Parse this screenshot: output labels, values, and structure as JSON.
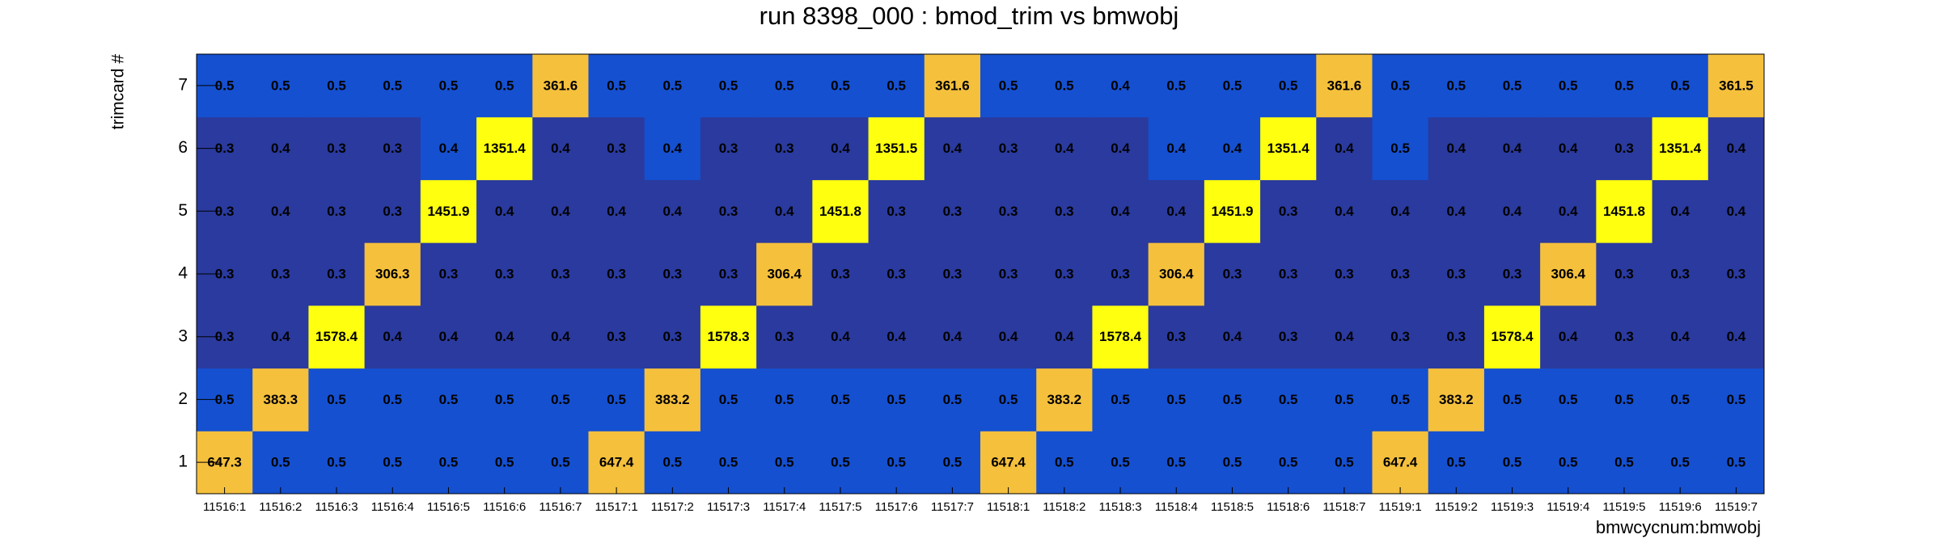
{
  "chart_data": {
    "type": "heatmap",
    "title": "run 8398_000 : bmod_trim vs bmwobj",
    "x_label": "bmwcycnum:bmwobj",
    "y_label": "trimcard #",
    "categories": [
      "11516:1",
      "11516:2",
      "11516:3",
      "11516:4",
      "11516:5",
      "11516:6",
      "11516:7",
      "11517:1",
      "11517:2",
      "11517:3",
      "11517:4",
      "11517:5",
      "11517:6",
      "11517:7",
      "11518:1",
      "11518:2",
      "11518:3",
      "11518:4",
      "11518:5",
      "11518:6",
      "11518:7",
      "11519:1",
      "11519:2",
      "11519:3",
      "11519:4",
      "11519:5",
      "11519:6",
      "11519:7"
    ],
    "y_categories": [
      "1",
      "2",
      "3",
      "4",
      "5",
      "6",
      "7"
    ],
    "values": [
      [
        647.3,
        0.5,
        0.5,
        0.5,
        0.5,
        0.5,
        0.5,
        647.4,
        0.5,
        0.5,
        0.5,
        0.5,
        0.5,
        0.5,
        647.4,
        0.5,
        0.5,
        0.5,
        0.5,
        0.5,
        0.5,
        647.4,
        0.5,
        0.5,
        0.5,
        0.5,
        0.5,
        0.5
      ],
      [
        0.5,
        383.3,
        0.5,
        0.5,
        0.5,
        0.5,
        0.5,
        0.5,
        383.2,
        0.5,
        0.5,
        0.5,
        0.5,
        0.5,
        0.5,
        383.2,
        0.5,
        0.5,
        0.5,
        0.5,
        0.5,
        0.5,
        383.2,
        0.5,
        0.5,
        0.5,
        0.5,
        0.5
      ],
      [
        0.3,
        0.4,
        1578.4,
        0.4,
        0.4,
        0.4,
        0.4,
        0.3,
        0.3,
        1578.3,
        0.3,
        0.4,
        0.4,
        0.4,
        0.4,
        0.4,
        1578.4,
        0.3,
        0.4,
        0.3,
        0.4,
        0.3,
        0.3,
        1578.4,
        0.4,
        0.3,
        0.4,
        0.4
      ],
      [
        0.3,
        0.3,
        0.3,
        306.3,
        0.3,
        0.3,
        0.3,
        0.3,
        0.3,
        0.3,
        306.4,
        0.3,
        0.3,
        0.3,
        0.3,
        0.3,
        0.3,
        306.4,
        0.3,
        0.3,
        0.3,
        0.3,
        0.3,
        0.3,
        306.4,
        0.3,
        0.3,
        0.3
      ],
      [
        0.3,
        0.4,
        0.3,
        0.3,
        1451.9,
        0.4,
        0.4,
        0.4,
        0.4,
        0.3,
        0.4,
        1451.8,
        0.3,
        0.3,
        0.3,
        0.3,
        0.4,
        0.4,
        1451.9,
        0.3,
        0.4,
        0.4,
        0.4,
        0.4,
        0.4,
        1451.8,
        0.4,
        0.4
      ],
      [
        0.3,
        0.4,
        0.3,
        0.3,
        0.4,
        1351.4,
        0.4,
        0.3,
        0.4,
        0.3,
        0.3,
        0.4,
        1351.5,
        0.4,
        0.3,
        0.4,
        0.4,
        0.4,
        0.4,
        1351.4,
        0.4,
        0.5,
        0.4,
        0.4,
        0.4,
        0.3,
        1351.4,
        0.4
      ],
      [
        0.5,
        0.5,
        0.5,
        0.5,
        0.5,
        0.5,
        361.6,
        0.5,
        0.5,
        0.5,
        0.5,
        0.5,
        0.5,
        361.6,
        0.5,
        0.5,
        0.4,
        0.5,
        0.5,
        0.5,
        361.6,
        0.5,
        0.5,
        0.5,
        0.5,
        0.5,
        0.5,
        361.5
      ]
    ],
    "cell_colors": [
      [
        "#f5c03c",
        "#1550d0",
        "#1550d0",
        "#1550d0",
        "#1550d0",
        "#1550d0",
        "#1550d0",
        "#f5c03c",
        "#1550d0",
        "#1550d0",
        "#1550d0",
        "#1550d0",
        "#1550d0",
        "#1550d0",
        "#f5c03c",
        "#1550d0",
        "#1550d0",
        "#1550d0",
        "#1550d0",
        "#1550d0",
        "#1550d0",
        "#f5c03c",
        "#1550d0",
        "#1550d0",
        "#1550d0",
        "#1550d0",
        "#1550d0",
        "#1550d0"
      ],
      [
        "#1550d0",
        "#f5c03c",
        "#1550d0",
        "#1550d0",
        "#1550d0",
        "#1550d0",
        "#1550d0",
        "#1550d0",
        "#f5c03c",
        "#1550d0",
        "#1550d0",
        "#1550d0",
        "#1550d0",
        "#1550d0",
        "#1550d0",
        "#f5c03c",
        "#1550d0",
        "#1550d0",
        "#1550d0",
        "#1550d0",
        "#1550d0",
        "#1550d0",
        "#f5c03c",
        "#1550d0",
        "#1550d0",
        "#1550d0",
        "#1550d0",
        "#1550d0"
      ],
      [
        "#2a3a9e",
        "#2a3a9e",
        "#ffff10",
        "#2a3a9e",
        "#2a3a9e",
        "#2a3a9e",
        "#2a3a9e",
        "#2a3a9e",
        "#2a3a9e",
        "#ffff10",
        "#2a3a9e",
        "#2a3a9e",
        "#2a3a9e",
        "#2a3a9e",
        "#2a3a9e",
        "#2a3a9e",
        "#ffff10",
        "#2a3a9e",
        "#2a3a9e",
        "#2a3a9e",
        "#2a3a9e",
        "#2a3a9e",
        "#2a3a9e",
        "#ffff10",
        "#2a3a9e",
        "#2a3a9e",
        "#2a3a9e",
        "#2a3a9e"
      ],
      [
        "#2a3a9e",
        "#2a3a9e",
        "#2a3a9e",
        "#f5c03c",
        "#2a3a9e",
        "#2a3a9e",
        "#2a3a9e",
        "#2a3a9e",
        "#2a3a9e",
        "#2a3a9e",
        "#f5c03c",
        "#2a3a9e",
        "#2a3a9e",
        "#2a3a9e",
        "#2a3a9e",
        "#2a3a9e",
        "#2a3a9e",
        "#f5c03c",
        "#2a3a9e",
        "#2a3a9e",
        "#2a3a9e",
        "#2a3a9e",
        "#2a3a9e",
        "#2a3a9e",
        "#f5c03c",
        "#2a3a9e",
        "#2a3a9e",
        "#2a3a9e"
      ],
      [
        "#2a3a9e",
        "#2a3a9e",
        "#2a3a9e",
        "#2a3a9e",
        "#ffff10",
        "#2a3a9e",
        "#2a3a9e",
        "#2a3a9e",
        "#2a3a9e",
        "#2a3a9e",
        "#2a3a9e",
        "#ffff10",
        "#2a3a9e",
        "#2a3a9e",
        "#2a3a9e",
        "#2a3a9e",
        "#2a3a9e",
        "#2a3a9e",
        "#ffff10",
        "#2a3a9e",
        "#2a3a9e",
        "#2a3a9e",
        "#2a3a9e",
        "#2a3a9e",
        "#2a3a9e",
        "#ffff10",
        "#2a3a9e",
        "#2a3a9e"
      ],
      [
        "#2a3a9e",
        "#2a3a9e",
        "#2a3a9e",
        "#2a3a9e",
        "#1550d0",
        "#ffff10",
        "#2a3a9e",
        "#2a3a9e",
        "#1550d0",
        "#2a3a9e",
        "#2a3a9e",
        "#2a3a9e",
        "#ffff10",
        "#2a3a9e",
        "#2a3a9e",
        "#2a3a9e",
        "#2a3a9e",
        "#1550d0",
        "#1550d0",
        "#ffff10",
        "#2a3a9e",
        "#1550d0",
        "#2a3a9e",
        "#2a3a9e",
        "#2a3a9e",
        "#2a3a9e",
        "#ffff10",
        "#2a3a9e"
      ],
      [
        "#1550d0",
        "#1550d0",
        "#1550d0",
        "#1550d0",
        "#1550d0",
        "#1550d0",
        "#f5c03c",
        "#1550d0",
        "#1550d0",
        "#1550d0",
        "#1550d0",
        "#1550d0",
        "#1550d0",
        "#f5c03c",
        "#1550d0",
        "#1550d0",
        "#1550d0",
        "#1550d0",
        "#1550d0",
        "#1550d0",
        "#f5c03c",
        "#1550d0",
        "#1550d0",
        "#1550d0",
        "#1550d0",
        "#1550d0",
        "#1550d0",
        "#f5c03c"
      ]
    ]
  }
}
